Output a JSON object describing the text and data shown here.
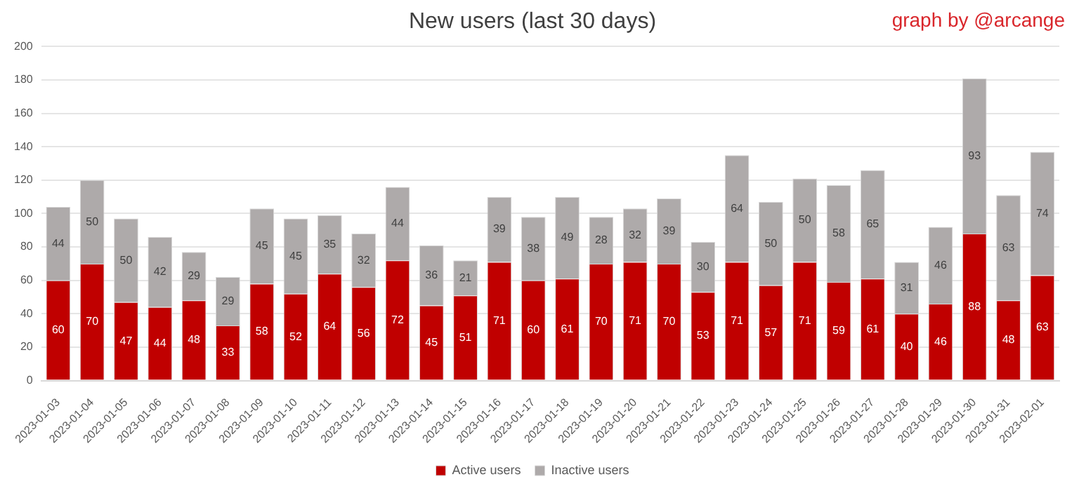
{
  "chart_data": {
    "type": "bar",
    "title": "New users (last 30 days)",
    "annotations": [
      "graph by @arcange"
    ],
    "categories": [
      "2023-01-03",
      "2023-01-04",
      "2023-01-05",
      "2023-01-06",
      "2023-01-07",
      "2023-01-08",
      "2023-01-09",
      "2023-01-10",
      "2023-01-11",
      "2023-01-12",
      "2023-01-13",
      "2023-01-14",
      "2023-01-15",
      "2023-01-16",
      "2023-01-17",
      "2023-01-18",
      "2023-01-19",
      "2023-01-20",
      "2023-01-21",
      "2023-01-22",
      "2023-01-23",
      "2023-01-24",
      "2023-01-25",
      "2023-01-26",
      "2023-01-27",
      "2023-01-28",
      "2023-01-29",
      "2023-01-30",
      "2023-01-31",
      "2023-02-01"
    ],
    "series": [
      {
        "name": "Active users",
        "color": "#c00000",
        "values": [
          60,
          70,
          47,
          44,
          48,
          33,
          58,
          52,
          64,
          56,
          72,
          45,
          51,
          71,
          60,
          61,
          70,
          71,
          70,
          53,
          71,
          57,
          71,
          59,
          61,
          40,
          46,
          88,
          48,
          63
        ]
      },
      {
        "name": "Inactive users",
        "color": "#aeaaaa",
        "values": [
          44,
          50,
          50,
          42,
          29,
          29,
          45,
          45,
          35,
          32,
          44,
          36,
          21,
          39,
          38,
          49,
          28,
          32,
          39,
          30,
          64,
          50,
          50,
          58,
          65,
          31,
          46,
          93,
          63,
          74
        ]
      }
    ],
    "stacked": true,
    "ylim": [
      0,
      200
    ],
    "yticks": [
      0,
      20,
      40,
      60,
      80,
      100,
      120,
      140,
      160,
      180,
      200
    ],
    "grid": "y",
    "legend": "bottom",
    "data_labels": true
  }
}
